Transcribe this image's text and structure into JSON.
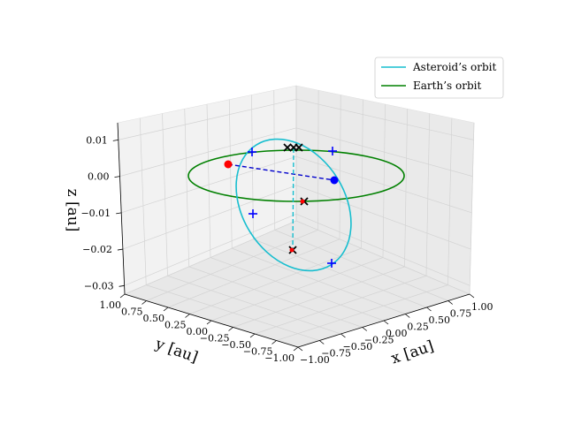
{
  "chart_data": {
    "type": "line",
    "projection": "3d",
    "grid": true,
    "legend_position": "top-right",
    "axes": {
      "xlabel": "x [au]",
      "ylabel": "y [au]",
      "zlabel": "z [au]",
      "xlim": [
        -1.0,
        1.0
      ],
      "ylim": [
        -1.0,
        1.0
      ],
      "zlim": [
        -0.03,
        0.015
      ],
      "xticks": [
        "−1.00",
        "−0.75",
        "−0.50",
        "−0.25",
        "0.00",
        "0.25",
        "0.50",
        "0.75",
        "1.00"
      ],
      "yticks": [
        "1.00",
        "0.75",
        "0.50",
        "0.25",
        "0.00",
        "−0.25",
        "−0.50",
        "−0.75",
        "−1.00"
      ],
      "zticks": [
        "0.01",
        "0.00",
        "−0.01",
        "−0.02",
        "−0.03"
      ]
    },
    "series": [
      {
        "name": "Asteroid’s orbit",
        "color": "#17becf",
        "kind": "ellipse",
        "semi_major_x": 0.36,
        "semi_minor_y": 0.12,
        "tilt_z": 0.015
      },
      {
        "name": "Earth’s orbit",
        "color": "#008000",
        "kind": "circle",
        "radius": 1.0,
        "z": 0.0
      }
    ],
    "annotations": {
      "asteroid_point_color": "#ff0000",
      "earth_point_color": "#0000ff",
      "plus_marker_color": "#0000ff",
      "x_marker_color": "#000000",
      "dashed_link_color": "#0000cc",
      "dashed_vertical_color": "#17becf"
    }
  }
}
